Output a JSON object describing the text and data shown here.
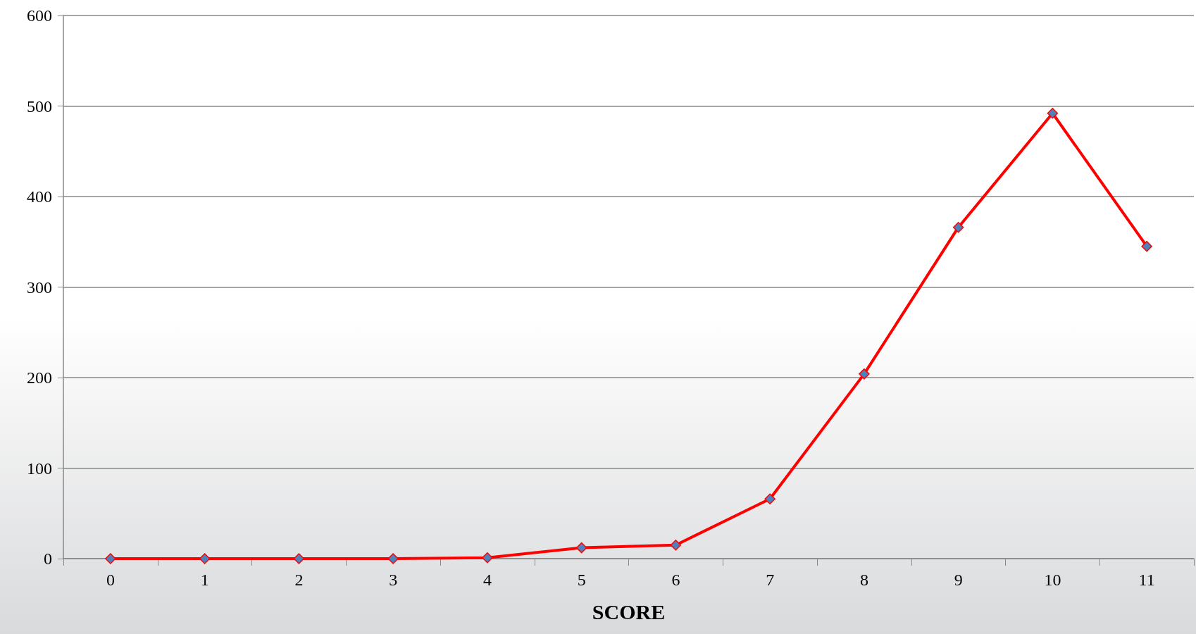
{
  "chart_data": {
    "type": "line",
    "xlabel": "SCORE",
    "categories": [
      "0",
      "1",
      "2",
      "3",
      "4",
      "5",
      "6",
      "7",
      "8",
      "9",
      "10",
      "11"
    ],
    "series": [
      {
        "color": "#ff0000",
        "values": [
          0,
          0,
          0,
          0,
          1,
          12,
          15,
          66,
          204,
          366,
          492,
          345
        ]
      }
    ],
    "ylim": [
      0,
      600
    ],
    "yticks": [
      0,
      100,
      200,
      300,
      400,
      500,
      600
    ],
    "grid": "y",
    "marker": "diamond",
    "line_style": "solid"
  }
}
